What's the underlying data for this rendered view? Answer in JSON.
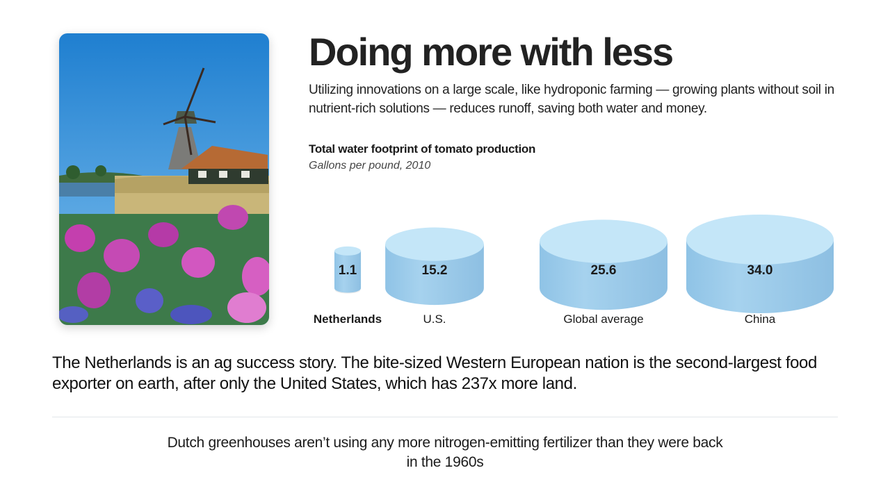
{
  "header": {
    "title": "Doing more with less",
    "subtitle": "Utilizing innovations on a large scale, like hydroponic farming — growing plants without soil in nutrient-rich solutions — reduces runoff, saving both water and money."
  },
  "body_text": "The Netherlands is an ag success story. The bite-sized Western European nation is the second-largest food exporter on earth, after only the United States, which has 237x more land.",
  "footer_text": "Dutch greenhouses aren’t using any more nitrogen-emitting fertilizer than they were back in the 1960s",
  "colors": {
    "cylinder_top": "#c4e6f8",
    "cylinder_side": "#a6d2ee",
    "text_dark": "#1b1b1b"
  },
  "chart_data": {
    "type": "bar",
    "title": "Total water footprint of tomato production",
    "subtitle": "Gallons per pound, 2010",
    "categories": [
      "Netherlands",
      "U.S.",
      "Global average",
      "China"
    ],
    "values": [
      1.1,
      15.2,
      25.6,
      34.0
    ],
    "value_labels": [
      "1.1",
      "15.2",
      "25.6",
      "34.0"
    ],
    "highlight": "Netherlands"
  }
}
